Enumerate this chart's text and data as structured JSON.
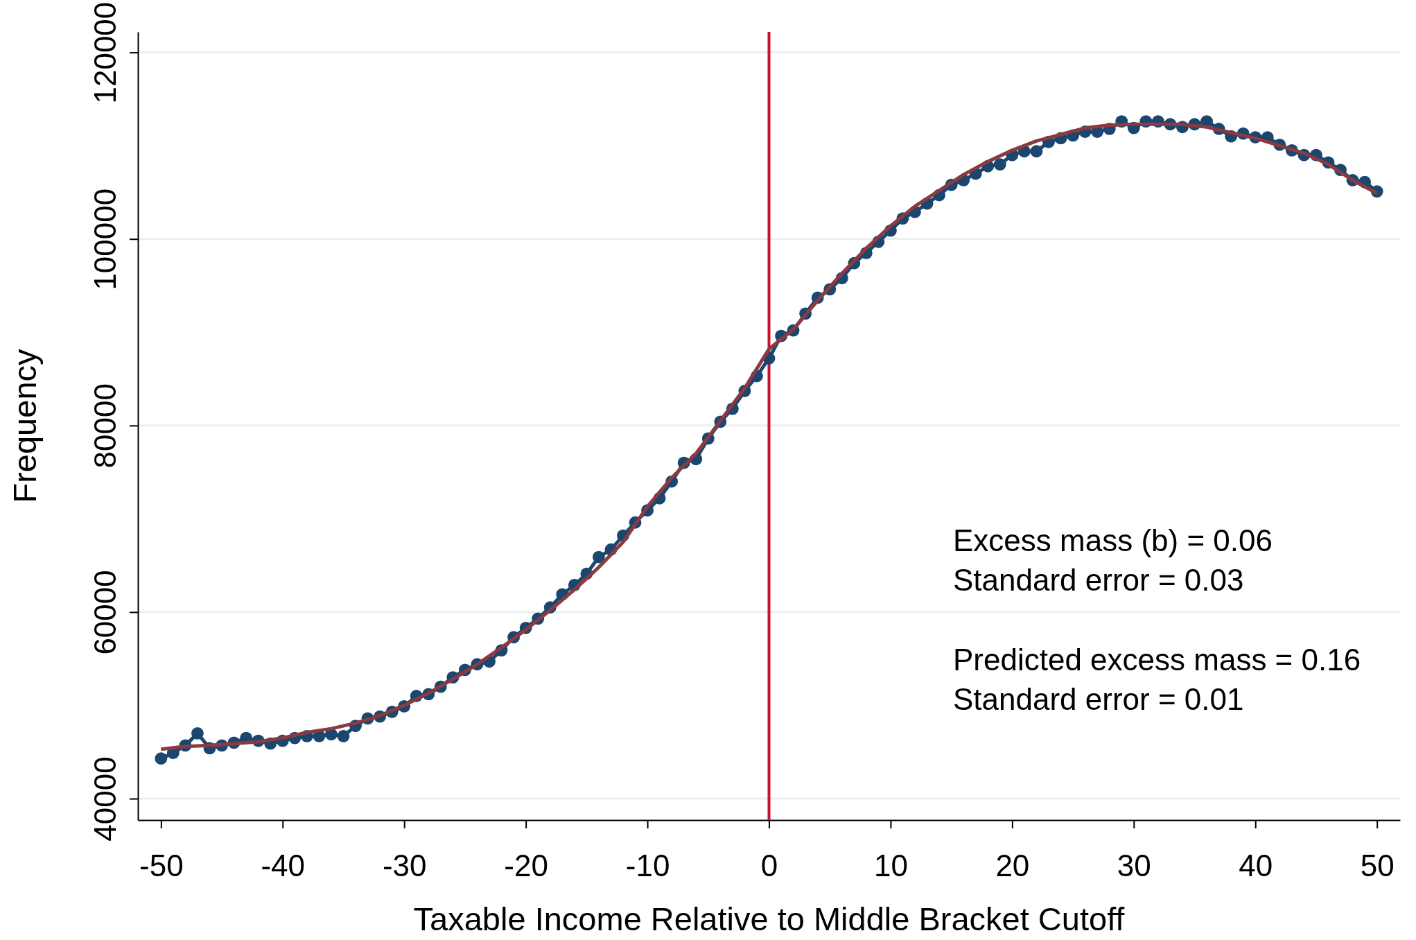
{
  "chart_data": {
    "type": "line",
    "xlabel": "Taxable Income Relative to Middle Bracket Cutoff",
    "ylabel": "Frequency",
    "xlim": [
      -51.9,
      51.9
    ],
    "xticks": [
      -50,
      -40,
      -30,
      -20,
      -10,
      0,
      10,
      20,
      30,
      40,
      50
    ],
    "ylim": [
      37700,
      122200
    ],
    "yticks": [
      40000,
      60000,
      80000,
      100000,
      120000
    ],
    "grid": "y",
    "series": [
      {
        "marker": "circle",
        "color": "#1a4670",
        "x": [
          -50,
          -49,
          -48,
          -47,
          -46,
          -45,
          -44,
          -43,
          -42,
          -41,
          -40,
          -39,
          -38,
          -37,
          -36,
          -35,
          -34,
          -33,
          -32,
          -31,
          -30,
          -29,
          -28,
          -27,
          -26,
          -25,
          -24,
          -23,
          -22,
          -21,
          -20,
          -19,
          -18,
          -17,
          -16,
          -15,
          -14,
          -13,
          -12,
          -11,
          -10,
          -9,
          -8,
          -7,
          -6,
          -5,
          -4,
          -3,
          -2,
          -1,
          0,
          1,
          2,
          3,
          4,
          5,
          6,
          7,
          8,
          9,
          10,
          11,
          12,
          13,
          14,
          15,
          16,
          17,
          18,
          19,
          20,
          21,
          22,
          23,
          24,
          25,
          26,
          27,
          28,
          29,
          30,
          31,
          32,
          33,
          34,
          35,
          36,
          37,
          38,
          39,
          40,
          41,
          42,
          43,
          44,
          45,
          46,
          47,
          48,
          49,
          50
        ],
        "values": [
          44300,
          44900,
          45700,
          47000,
          45400,
          45700,
          46000,
          46500,
          46200,
          45900,
          46200,
          46500,
          46700,
          46700,
          46900,
          46700,
          47800,
          48600,
          48800,
          49300,
          49900,
          51000,
          51200,
          52000,
          53000,
          53800,
          54400,
          54700,
          55900,
          57300,
          58300,
          59300,
          60500,
          61900,
          62900,
          64100,
          65900,
          66700,
          68200,
          69600,
          70900,
          72200,
          74000,
          76000,
          76400,
          78600,
          80400,
          81800,
          83700,
          85300,
          87200,
          89600,
          90200,
          92000,
          93700,
          94600,
          95800,
          97400,
          98500,
          99700,
          100900,
          102200,
          102900,
          103800,
          104700,
          105800,
          106300,
          107000,
          107800,
          108000,
          109000,
          109400,
          109400,
          110400,
          110800,
          111100,
          111500,
          111500,
          111800,
          112600,
          111900,
          112600,
          112600,
          112300,
          112000,
          112300,
          112600,
          111800,
          111000,
          111300,
          110900,
          110900,
          110100,
          109500,
          109000,
          109000,
          108200,
          107400,
          106300,
          106100,
          105100
        ]
      },
      {
        "marker": "none",
        "color": "#8b3a40",
        "x": [
          -50,
          -48,
          -46,
          -44,
          -42,
          -40,
          -38,
          -36,
          -34,
          -32,
          -30,
          -28,
          -26,
          -24,
          -22,
          -20,
          -18,
          -16,
          -14,
          -12,
          -10,
          -8,
          -6,
          -4,
          -2,
          0,
          2,
          4,
          6,
          8,
          10,
          12,
          14,
          16,
          18,
          20,
          22,
          24,
          26,
          28,
          30,
          32,
          34,
          36,
          38,
          40,
          42,
          44,
          46,
          48,
          50
        ],
        "values": [
          45300,
          45600,
          45700,
          45900,
          46100,
          46500,
          47100,
          47500,
          48100,
          48900,
          50000,
          51300,
          52800,
          54400,
          56200,
          58100,
          60200,
          62400,
          64800,
          67500,
          71300,
          74400,
          77000,
          80500,
          84000,
          88200,
          90300,
          93400,
          96300,
          99000,
          101400,
          103500,
          105200,
          106900,
          108300,
          109500,
          110500,
          111200,
          111900,
          112200,
          112300,
          112300,
          112300,
          112000,
          111400,
          110800,
          110000,
          109200,
          108000,
          106300,
          104900
        ]
      }
    ],
    "ref_lines": [
      {
        "axis": "x",
        "value": 0,
        "color": "#c8102e"
      }
    ],
    "annotations": [
      "Excess mass (b) = 0.06",
      "Standard error = 0.03",
      "Predicted excess mass = 0.16",
      "Standard error = 0.01"
    ]
  }
}
